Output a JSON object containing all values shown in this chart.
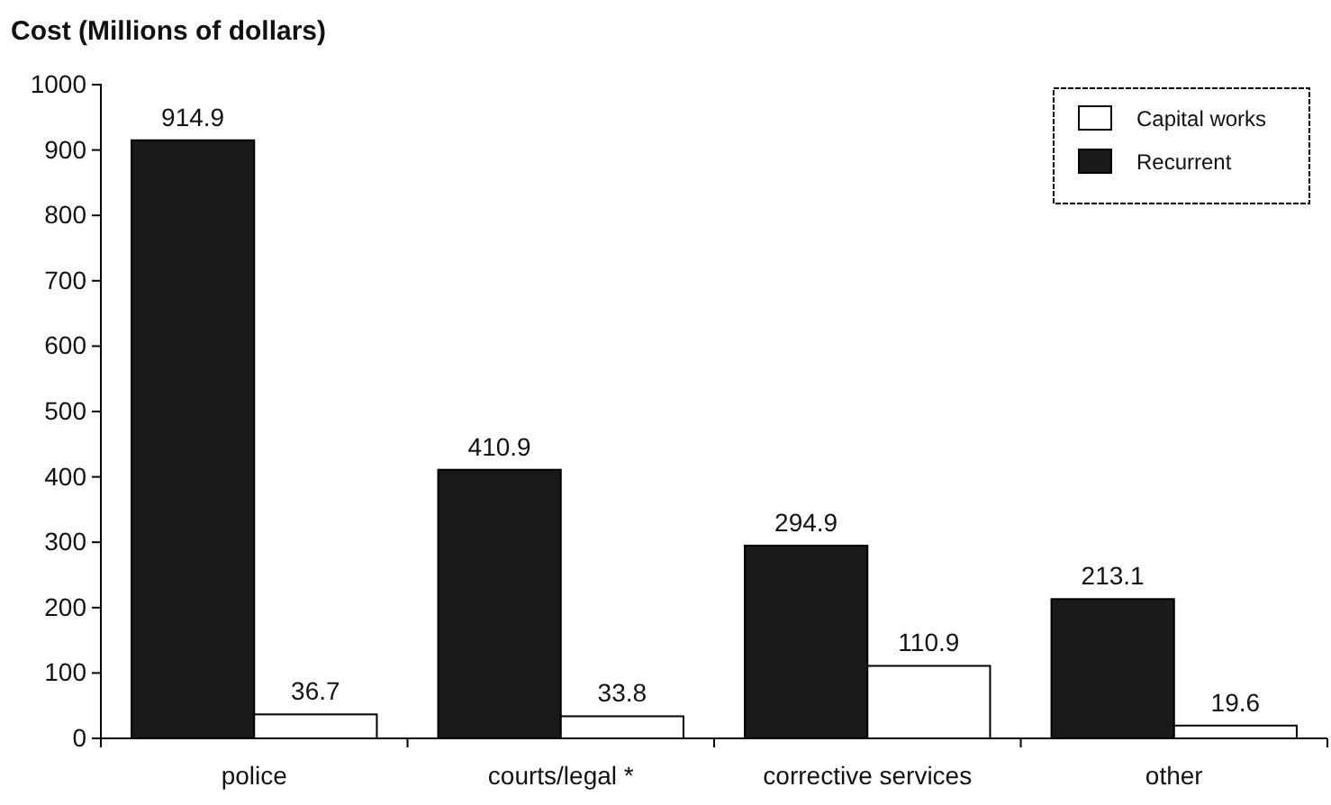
{
  "chart_data": {
    "type": "bar",
    "ylabel": "Cost (Millions of dollars)",
    "categories": [
      "police",
      "courts/legal *",
      "corrective services",
      "other"
    ],
    "series": [
      {
        "name": "Recurrent",
        "color": "#1a1a1a",
        "values": [
          914.9,
          410.9,
          294.9,
          213.1
        ]
      },
      {
        "name": "Capital works",
        "color": "#ffffff",
        "values": [
          36.7,
          33.8,
          110.9,
          19.6
        ]
      }
    ],
    "ylim": [
      0,
      1000
    ],
    "yticks": [
      0,
      100,
      200,
      300,
      400,
      500,
      600,
      700,
      800,
      900,
      1000
    ],
    "data_labels": true,
    "grid": false,
    "legend": "top right"
  }
}
